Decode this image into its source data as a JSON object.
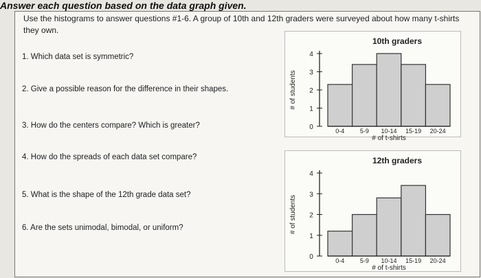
{
  "page": {
    "heading": "Answer each question based on the data graph given."
  },
  "worksheet": {
    "intro": "Use the histograms to answer questions #1-6. A group of 10th and 12th graders were surveyed about how many t-shirts they own.",
    "questions": [
      "1. Which data set is symmetric?",
      "2. Give a possible reason for the difference in their shapes.",
      "3. How do the centers compare? Which is greater?",
      "4. How do the spreads of each data set compare?",
      "5. What is the shape of the 12th grade data set?",
      "6. Are the sets unimodal, bimodal, or uniform?"
    ]
  },
  "chart_data": [
    {
      "type": "bar",
      "title": "10th graders",
      "xlabel": "# of t-shirts",
      "ylabel": "# of students",
      "categories": [
        "0-4",
        "5-9",
        "10-14",
        "15-19",
        "20-24"
      ],
      "values": [
        2.3,
        3.4,
        4.0,
        3.4,
        2.3
      ],
      "yticks": [
        0,
        1,
        2,
        3,
        4
      ],
      "ylim": [
        0,
        4
      ],
      "grid": false
    },
    {
      "type": "bar",
      "title": "12th graders",
      "xlabel": "# of t-shirts",
      "ylabel": "# of students",
      "categories": [
        "0-4",
        "5-9",
        "10-14",
        "15-19",
        "20-24"
      ],
      "values": [
        1.2,
        2.0,
        2.8,
        3.4,
        2.0
      ],
      "yticks": [
        0,
        1,
        2,
        3,
        4
      ],
      "ylim": [
        0,
        4
      ],
      "grid": false
    }
  ],
  "colors": {
    "bar_fill": "#cfcfcf",
    "bar_stroke": "#333333"
  }
}
